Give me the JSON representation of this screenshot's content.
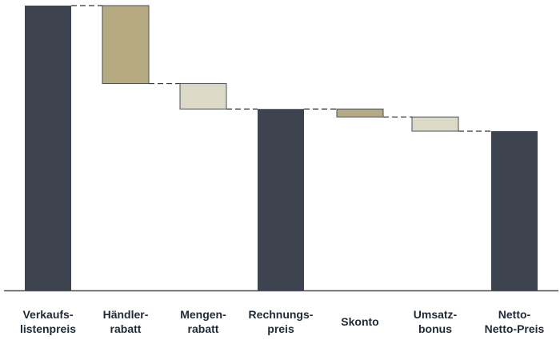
{
  "chart_data": {
    "type": "waterfall",
    "categories": [
      [
        "Verkaufs-",
        "listenpreis"
      ],
      [
        "Händler-",
        "rabatt"
      ],
      [
        "Mengen-",
        "rabatt"
      ],
      [
        "Rechnungs-",
        "preis"
      ],
      [
        "Skonto"
      ],
      [
        "Umsatz-",
        "bonus"
      ],
      [
        "Netto-",
        "Netto-Preis"
      ]
    ],
    "bars": [
      {
        "kind": "total",
        "start": 0,
        "end": 100
      },
      {
        "kind": "delta",
        "start": 100,
        "end": 72.6
      },
      {
        "kind": "delta",
        "start": 72.6,
        "end": 63.7
      },
      {
        "kind": "total",
        "start": 0,
        "end": 63.7
      },
      {
        "kind": "delta",
        "start": 63.7,
        "end": 60.9
      },
      {
        "kind": "delta",
        "start": 60.9,
        "end": 55.9
      },
      {
        "kind": "total",
        "start": 0,
        "end": 55.9
      }
    ],
    "ylim": [
      0,
      100
    ],
    "grid": false,
    "connectors": true,
    "colors": {
      "total": "#3d4450",
      "large_reduction": "#b5aa82",
      "small_reduction": "#dcd9c6",
      "edge": "#4a4f57",
      "axis": "#4a4f57",
      "connector": "#333333"
    }
  }
}
